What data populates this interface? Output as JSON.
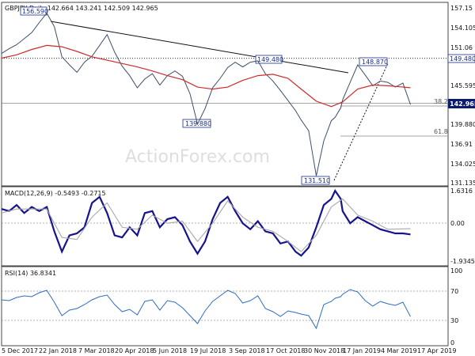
{
  "chart_data": [
    {
      "type": "line",
      "panel": "price",
      "title": "GBPJPY Daily  142.664 143.241 142.509 142.965",
      "y_ticks": [
        "157.15",
        "154.105",
        "151.06",
        "149.480",
        "145.595",
        "142.965",
        "139.880",
        "136.91",
        "134.025",
        "131.135"
      ],
      "ylim": [
        130.9,
        158.2
      ],
      "last_value": "142.965",
      "x_tick_labels": [
        "5 Dec 2017",
        "22 Jan 2018",
        "7 Mar 2018",
        "20 Apr 2018",
        "5 Jun 2018",
        "19 Jul 2018",
        "3 Sep 2018",
        "17 Oct 2018",
        "30 Nov 2018",
        "17 Jan 2019",
        "4 Mar 2019",
        "17 Apr 2019"
      ],
      "series": [
        {
          "x": [
            0,
            8,
            16,
            24,
            32,
            40,
            48,
            56,
            64,
            72,
            80,
            88,
            96,
            104,
            112,
            120,
            128,
            136,
            144,
            152,
            160,
            168,
            176,
            184,
            192,
            200,
            208,
            216,
            224,
            232,
            240,
            248,
            256,
            264,
            272,
            280,
            288,
            296,
            304,
            312,
            318,
            326,
            334,
            342,
            350,
            354,
            360,
            362,
            370,
            378,
            386,
            394,
            402,
            410,
            418,
            426,
            434
          ],
          "values": [
            150.6,
            151.3,
            151.9,
            152.8,
            153.7,
            155.2,
            156.6,
            154.6,
            150.1,
            148.9,
            147.8,
            149.3,
            150.2,
            151.8,
            153.4,
            150.8,
            148.7,
            147.3,
            145.5,
            146.8,
            147.6,
            145.9,
            147.3,
            148.0,
            147.2,
            144.6,
            140.1,
            142.4,
            145.5,
            146.9,
            148.5,
            149.3,
            148.6,
            149.3,
            149.5,
            147.6,
            146.5,
            145.1,
            143.6,
            142.1,
            140.7,
            139.1,
            132.4,
            137.6,
            140.6,
            141.1,
            142.5,
            143.7,
            146.3,
            148.9,
            147.4,
            145.8,
            146.5,
            146.3,
            145.6,
            146.2,
            143.0
          ]
        },
        {
          "x": [
            0,
            16,
            32,
            48,
            64,
            80,
            96,
            112,
            128,
            144,
            160,
            176,
            192,
            208,
            224,
            240,
            256,
            272,
            288,
            304,
            318,
            334,
            350,
            362,
            378,
            394,
            410,
            434
          ],
          "values": [
            149.9,
            150.4,
            151.2,
            151.8,
            151.6,
            150.9,
            150.1,
            149.6,
            149.1,
            148.6,
            148.0,
            147.3,
            146.7,
            145.6,
            145.3,
            145.6,
            146.6,
            147.3,
            147.5,
            146.9,
            145.3,
            143.5,
            142.7,
            143.4,
            145.3,
            145.9,
            145.8,
            145.5
          ]
        }
      ],
      "annotations": [
        "156.590",
        "149.480",
        "139.880",
        "131.510",
        "148.870",
        "149.480",
        "38.2",
        "61.8"
      ]
    },
    {
      "type": "line",
      "panel": "macd",
      "title": "MACD(12,26,9) -0.5493 -0.2715",
      "y_ticks": [
        "1.6316",
        "0.00",
        "-1.9345"
      ],
      "ylim": [
        -2.1,
        1.8
      ],
      "series": [
        {
          "x": [
            0,
            8,
            16,
            24,
            32,
            40,
            48,
            56,
            64,
            72,
            80,
            88,
            96,
            104,
            112,
            120,
            128,
            136,
            144,
            152,
            160,
            168,
            176,
            184,
            192,
            200,
            208,
            216,
            224,
            232,
            240,
            248,
            256,
            264,
            272,
            280,
            288,
            296,
            304,
            312,
            318,
            326,
            334,
            342,
            350,
            354,
            360,
            362,
            370,
            378,
            386,
            394,
            402,
            410,
            418,
            426,
            434
          ],
          "values": [
            0.7,
            0.6,
            0.9,
            0.5,
            0.8,
            0.6,
            0.8,
            -0.4,
            -1.4,
            -0.6,
            -0.5,
            -0.2,
            1.0,
            1.3,
            0.5,
            -0.6,
            -0.7,
            -0.2,
            -0.6,
            0.5,
            0.6,
            -0.2,
            0.2,
            0.3,
            -0.1,
            -0.9,
            -1.5,
            -0.9,
            0.2,
            1.0,
            1.3,
            0.6,
            0.0,
            -0.3,
            0.1,
            -0.4,
            -0.5,
            -1.0,
            -0.9,
            -1.4,
            -1.6,
            -1.2,
            -0.2,
            0.9,
            1.2,
            1.6,
            1.2,
            0.6,
            0.0,
            0.3,
            0.1,
            -0.1,
            -0.3,
            -0.4,
            -0.5,
            -0.5,
            -0.55
          ]
        },
        {
          "x": [
            0,
            16,
            32,
            48,
            64,
            80,
            96,
            112,
            128,
            144,
            160,
            176,
            192,
            208,
            224,
            240,
            256,
            272,
            288,
            304,
            318,
            334,
            350,
            362,
            378,
            394,
            410,
            434
          ],
          "values": [
            0.5,
            0.7,
            0.7,
            0.7,
            -0.7,
            -0.8,
            0.3,
            1.0,
            -0.2,
            -0.3,
            0.4,
            0.0,
            0.1,
            -0.9,
            0.0,
            1.1,
            0.3,
            -0.2,
            -0.4,
            -0.9,
            -1.4,
            -0.6,
            0.8,
            1.2,
            0.4,
            0.1,
            -0.3,
            -0.27
          ]
        }
      ]
    },
    {
      "type": "line",
      "panel": "rsi",
      "title": "RSI(14) 36.8341",
      "y_ticks": [
        "100",
        "70",
        "30",
        "0"
      ],
      "ylim": [
        0,
        100
      ],
      "series": [
        {
          "x": [
            0,
            8,
            16,
            24,
            32,
            40,
            48,
            56,
            64,
            72,
            80,
            88,
            96,
            104,
            112,
            120,
            128,
            136,
            144,
            152,
            160,
            168,
            176,
            184,
            192,
            200,
            208,
            216,
            224,
            232,
            240,
            248,
            256,
            264,
            272,
            280,
            288,
            296,
            304,
            312,
            318,
            326,
            334,
            342,
            350,
            354,
            360,
            362,
            370,
            378,
            386,
            394,
            402,
            410,
            418,
            426,
            434
          ],
          "values": [
            58,
            57,
            61,
            63,
            62,
            67,
            70,
            55,
            38,
            45,
            47,
            52,
            58,
            62,
            64,
            52,
            43,
            46,
            39,
            56,
            58,
            45,
            57,
            55,
            48,
            38,
            28,
            44,
            56,
            63,
            70,
            66,
            54,
            57,
            63,
            47,
            43,
            37,
            44,
            42,
            40,
            38,
            22,
            52,
            56,
            60,
            62,
            65,
            71,
            68,
            57,
            50,
            56,
            53,
            51,
            55,
            36.8
          ]
        }
      ]
    }
  ],
  "watermark": "ActionForex.com"
}
